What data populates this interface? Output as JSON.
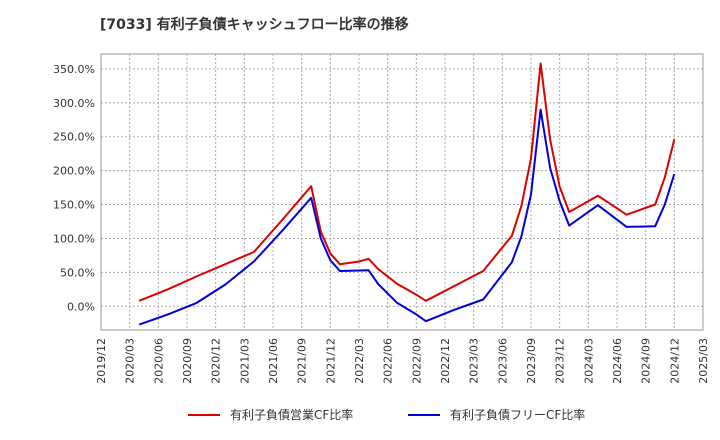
{
  "chart_data": {
    "type": "line",
    "title": "[7033]  有利子負債キャッシュフロー比率の推移",
    "xlabel": "",
    "ylabel": "",
    "ylim": [
      -35,
      372
    ],
    "yticks": [
      0,
      50,
      100,
      150,
      200,
      250,
      300,
      350
    ],
    "ytick_labels": [
      "0.0%",
      "50.0%",
      "100.0%",
      "150.0%",
      "200.0%",
      "250.0%",
      "300.0%",
      "350.0%"
    ],
    "xlim": [
      "2019/12",
      "2025/03"
    ],
    "xtick_labels": [
      "2019/12",
      "2020/03",
      "2020/06",
      "2020/09",
      "2020/12",
      "2021/03",
      "2021/06",
      "2021/09",
      "2021/12",
      "2022/03",
      "2022/06",
      "2022/09",
      "2022/12",
      "2023/03",
      "2023/06",
      "2023/09",
      "2023/12",
      "2024/03",
      "2024/06",
      "2024/09",
      "2024/12",
      "2025/03"
    ],
    "grid": true,
    "legend_position": "bottom",
    "series": [
      {
        "name": "有利子負債営業CF比率",
        "color": "#dd0000",
        "points": [
          [
            "2020/04",
            8
          ],
          [
            "2020/07",
            25
          ],
          [
            "2020/10",
            44
          ],
          [
            "2021/01",
            62
          ],
          [
            "2021/04",
            80
          ],
          [
            "2021/07",
            128
          ],
          [
            "2021/10",
            177
          ],
          [
            "2021/11",
            110
          ],
          [
            "2021/12",
            78
          ],
          [
            "2022/01",
            62
          ],
          [
            "2022/02",
            64
          ],
          [
            "2022/03",
            66
          ],
          [
            "2022/04",
            70
          ],
          [
            "2022/05",
            55
          ],
          [
            "2022/07",
            33
          ],
          [
            "2022/09",
            17
          ],
          [
            "2022/10",
            8
          ],
          [
            "2023/01",
            30
          ],
          [
            "2023/04",
            52
          ],
          [
            "2023/07",
            104
          ],
          [
            "2023/08",
            148
          ],
          [
            "2023/09",
            218
          ],
          [
            "2023/10",
            358
          ],
          [
            "2023/11",
            246
          ],
          [
            "2023/12",
            176
          ],
          [
            "2024/01",
            139
          ],
          [
            "2024/04",
            163
          ],
          [
            "2024/07",
            135
          ],
          [
            "2024/10",
            150
          ],
          [
            "2024/11",
            190
          ],
          [
            "2024/12",
            246
          ]
        ]
      },
      {
        "name": "有利子負債フリーCF比率",
        "color": "#0000dd",
        "points": [
          [
            "2020/04",
            -27
          ],
          [
            "2020/07",
            -12
          ],
          [
            "2020/10",
            5
          ],
          [
            "2021/01",
            32
          ],
          [
            "2021/04",
            66
          ],
          [
            "2021/07",
            112
          ],
          [
            "2021/10",
            160
          ],
          [
            "2021/11",
            100
          ],
          [
            "2021/12",
            68
          ],
          [
            "2022/01",
            52
          ],
          [
            "2022/04",
            53
          ],
          [
            "2022/05",
            33
          ],
          [
            "2022/07",
            5
          ],
          [
            "2022/09",
            -12
          ],
          [
            "2022/10",
            -22
          ],
          [
            "2023/01",
            -5
          ],
          [
            "2023/04",
            10
          ],
          [
            "2023/07",
            65
          ],
          [
            "2023/08",
            103
          ],
          [
            "2023/09",
            165
          ],
          [
            "2023/10",
            290
          ],
          [
            "2023/11",
            204
          ],
          [
            "2023/12",
            155
          ],
          [
            "2024/01",
            119
          ],
          [
            "2024/04",
            149
          ],
          [
            "2024/07",
            117
          ],
          [
            "2024/10",
            118
          ],
          [
            "2024/11",
            150
          ],
          [
            "2024/12",
            195
          ]
        ]
      }
    ]
  }
}
